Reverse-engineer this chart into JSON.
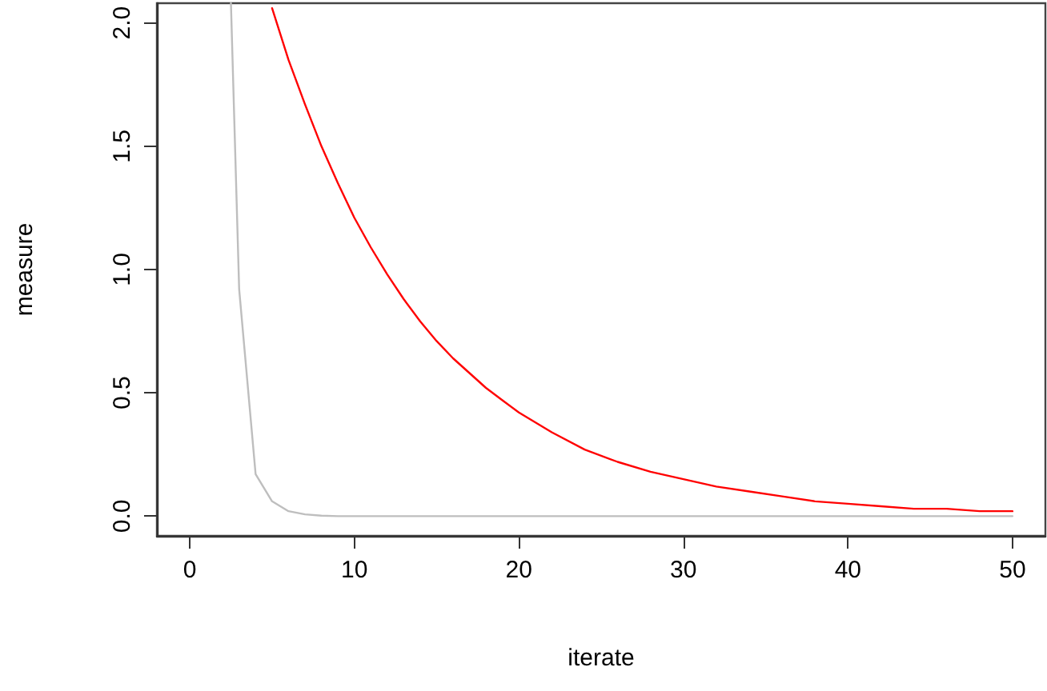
{
  "chart_data": {
    "type": "line",
    "xlabel": "iterate",
    "ylabel": "measure",
    "xlim": [
      -2,
      52
    ],
    "ylim": [
      -0.08,
      2.08
    ],
    "xticks": [
      0,
      10,
      20,
      30,
      40,
      50
    ],
    "yticks": [
      {
        "value": 0,
        "label": "0.0"
      },
      0.5,
      {
        "value": 1,
        "label": "1.0"
      },
      1.5,
      {
        "value": 2,
        "label": "2.0"
      }
    ],
    "grid": false,
    "marker": "none",
    "line_style": "solid",
    "series": [
      {
        "color": "#bebebe",
        "x": [
          2.5,
          3,
          4,
          5,
          6,
          7,
          8,
          9,
          10,
          15,
          20,
          25,
          30,
          35,
          40,
          45,
          50
        ],
        "values": [
          2.08,
          0.92,
          0.17,
          0.06,
          0.02,
          0.007,
          0.002,
          0,
          0,
          0,
          0,
          0,
          0,
          0,
          0,
          0,
          0
        ]
      },
      {
        "color": "#ff0000",
        "x": [
          5,
          6,
          7,
          8,
          9,
          10,
          11,
          12,
          13,
          14,
          15,
          16,
          17,
          18,
          19,
          20,
          22,
          24,
          26,
          28,
          30,
          32,
          34,
          36,
          38,
          40,
          42,
          44,
          46,
          48,
          50
        ],
        "values": [
          2.06,
          1.85,
          1.67,
          1.5,
          1.35,
          1.21,
          1.09,
          0.98,
          0.88,
          0.79,
          0.71,
          0.64,
          0.58,
          0.52,
          0.47,
          0.42,
          0.34,
          0.27,
          0.22,
          0.18,
          0.15,
          0.12,
          0.1,
          0.08,
          0.06,
          0.05,
          0.04,
          0.03,
          0.03,
          0.02,
          0.02
        ]
      }
    ]
  }
}
